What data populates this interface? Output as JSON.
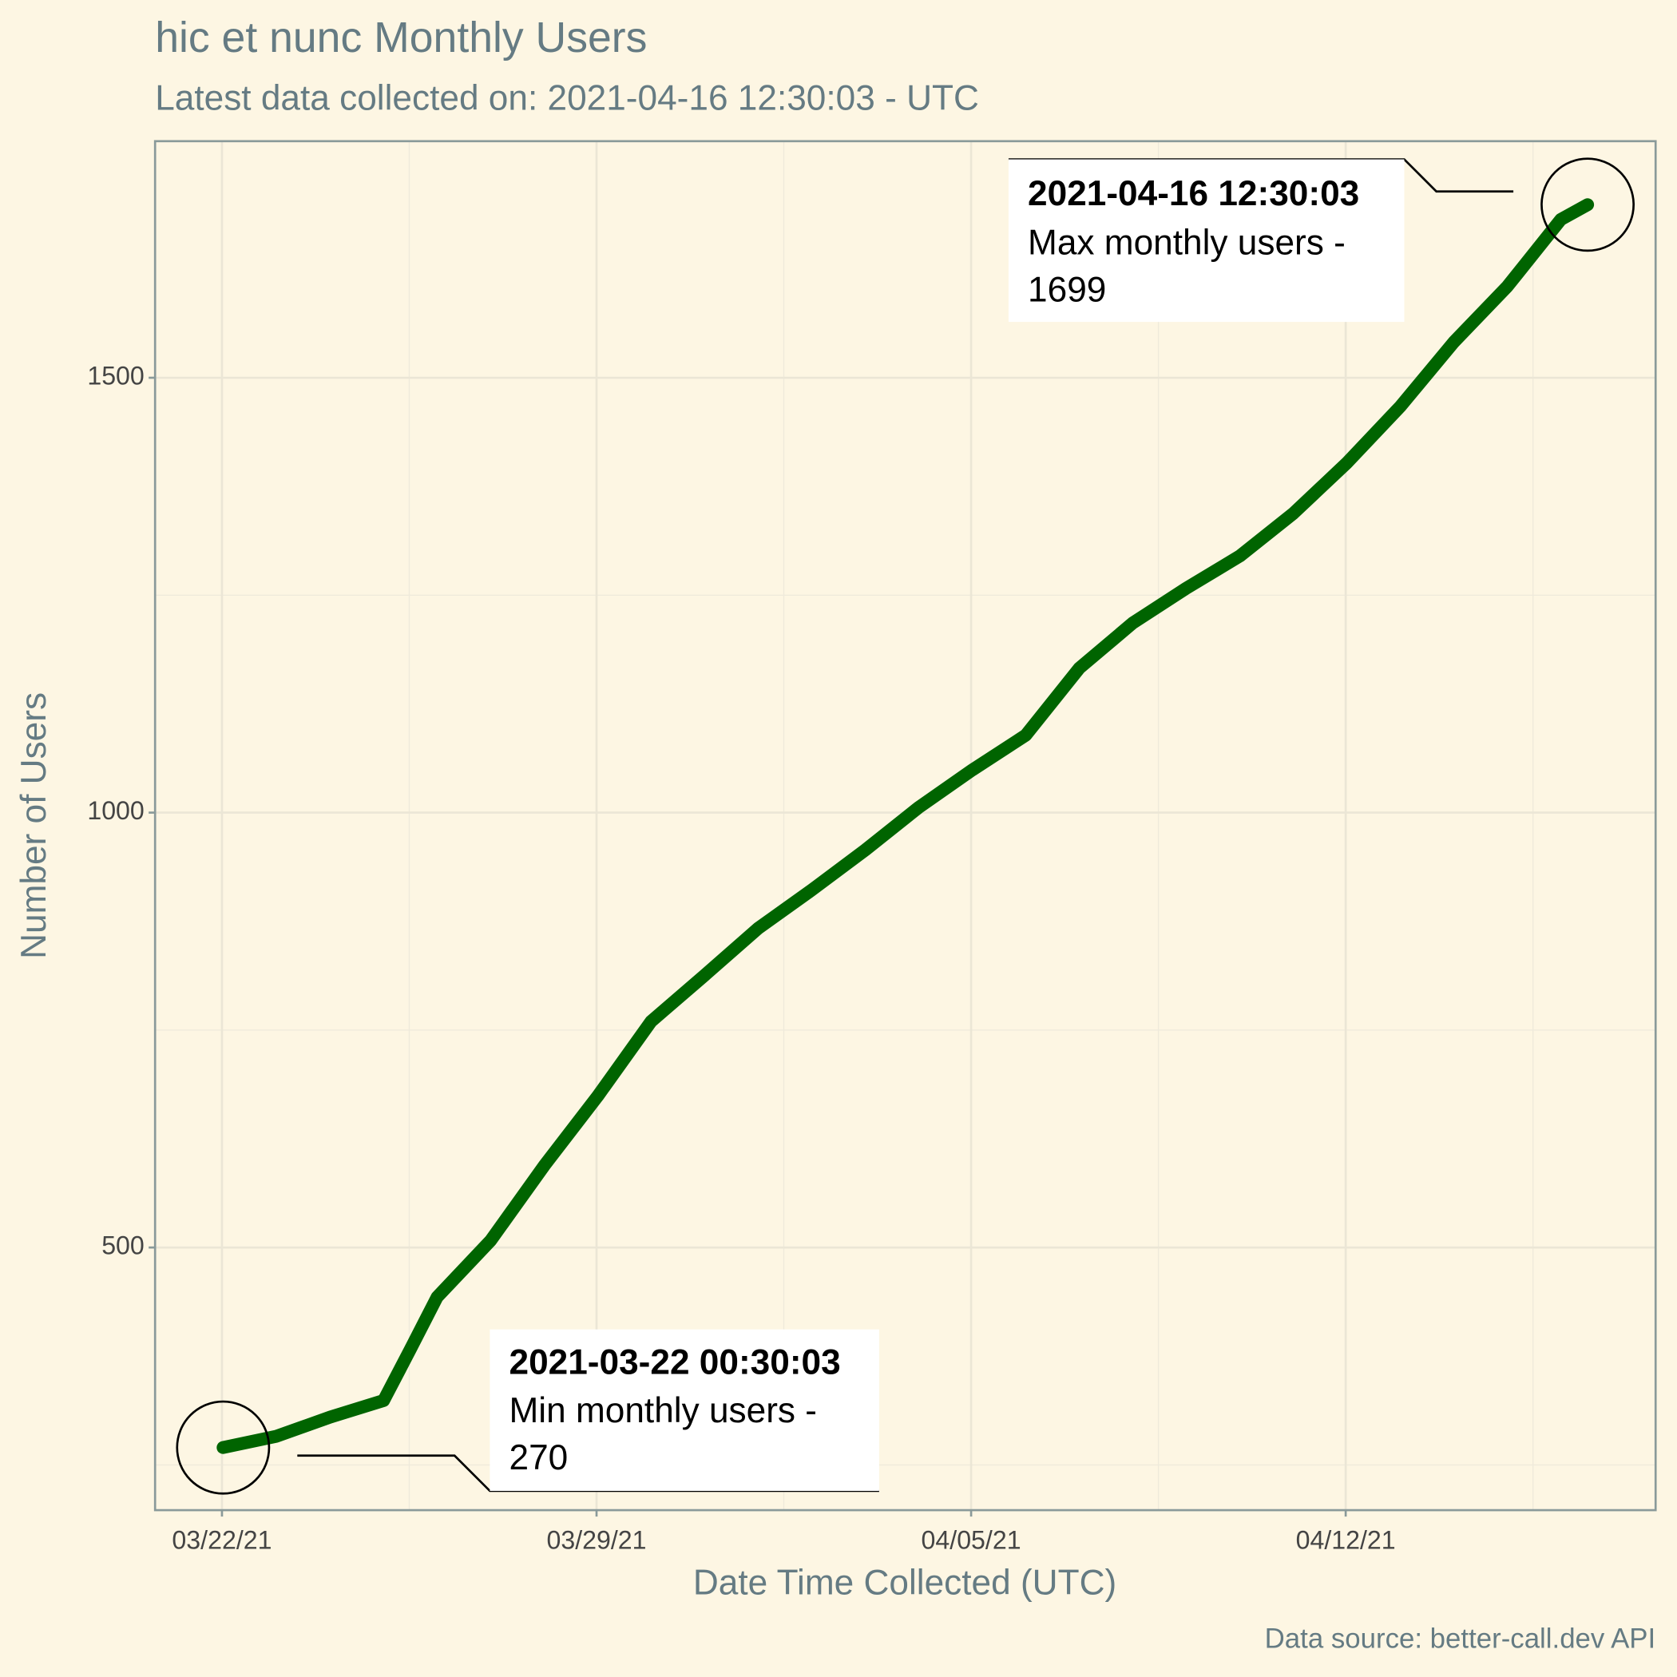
{
  "chart_data": {
    "type": "line",
    "title": "hic et nunc Monthly Users",
    "subtitle": "Latest data collected on: 2021-04-16 12:30:03  - UTC",
    "x_label": "Date Time Collected (UTC)",
    "y_label": "Number of Users",
    "caption": "Data source: better-call.dev API",
    "x": [
      "2021-03-22 00:30",
      "2021-03-23 00:30",
      "2021-03-24 00:30",
      "2021-03-25 00:30",
      "2021-03-25 12:30",
      "2021-03-26 00:30",
      "2021-03-27 00:30",
      "2021-03-28 00:30",
      "2021-03-29 00:30",
      "2021-03-30 00:30",
      "2021-03-31 00:30",
      "2021-04-01 00:30",
      "2021-04-02 00:30",
      "2021-04-03 00:30",
      "2021-04-04 00:30",
      "2021-04-05 00:30",
      "2021-04-06 00:30",
      "2021-04-07 00:30",
      "2021-04-08 00:30",
      "2021-04-09 00:30",
      "2021-04-10 00:30",
      "2021-04-11 00:30",
      "2021-04-12 00:30",
      "2021-04-13 00:30",
      "2021-04-14 00:30",
      "2021-04-15 00:30",
      "2021-04-16 00:30",
      "2021-04-16 12:30"
    ],
    "series": [
      {
        "name": "Monthly users",
        "color": "#006400",
        "values": [
          270,
          283,
          305,
          324,
          383,
          443,
          508,
          594,
          674,
          760,
          813,
          867,
          911,
          957,
          1006,
          1049,
          1089,
          1166,
          1218,
          1258,
          1295,
          1344,
          1402,
          1467,
          1541,
          1605,
          1682,
          1699
        ]
      }
    ],
    "xlim": [
      "2021-03-20 18:00",
      "2021-04-17 19:00"
    ],
    "xticks": [
      {
        "value": "2021-03-22",
        "label": "03/22/21"
      },
      {
        "value": "2021-03-29",
        "label": "03/29/21"
      },
      {
        "value": "2021-04-05",
        "label": "04/05/21"
      },
      {
        "value": "2021-04-12",
        "label": "04/12/21"
      }
    ],
    "x_minor_ticks": [
      "2021-03-25 12:00",
      "2021-04-01 12:00",
      "2021-04-08 12:00",
      "2021-04-15 12:00"
    ],
    "ylim": [
      198,
      1772
    ],
    "yticks": [
      500,
      1000,
      1500
    ],
    "y_minor_ticks": [
      250,
      750,
      1250
    ],
    "grid": true,
    "annotations": [
      {
        "datetime": "2021-03-22 00:30:03",
        "text": "Min monthly users -",
        "value": 270
      },
      {
        "datetime": "2021-04-16 12:30:03",
        "text": "Max monthly users -",
        "value": 1699
      }
    ]
  }
}
